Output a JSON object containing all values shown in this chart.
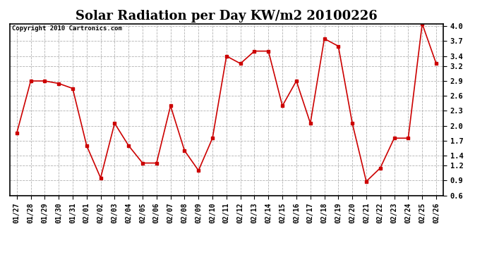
{
  "title": "Solar Radiation per Day KW/m2 20100226",
  "copyright": "Copyright 2010 Cartronics.com",
  "dates": [
    "01/27",
    "01/28",
    "01/29",
    "01/30",
    "01/31",
    "02/01",
    "02/02",
    "02/03",
    "02/04",
    "02/05",
    "02/06",
    "02/07",
    "02/08",
    "02/09",
    "02/10",
    "02/11",
    "02/12",
    "02/13",
    "02/14",
    "02/15",
    "02/16",
    "02/17",
    "02/18",
    "02/19",
    "02/20",
    "02/21",
    "02/22",
    "02/23",
    "02/24",
    "02/25",
    "02/26"
  ],
  "values": [
    1.85,
    2.9,
    2.9,
    2.85,
    2.75,
    1.6,
    0.95,
    2.05,
    1.6,
    1.25,
    1.25,
    2.4,
    1.5,
    1.1,
    1.75,
    3.4,
    3.25,
    3.5,
    3.5,
    2.4,
    2.9,
    2.05,
    3.75,
    3.6,
    2.05,
    0.88,
    1.15,
    1.75,
    1.75,
    4.05,
    3.25
  ],
  "line_color": "#cc0000",
  "marker": "s",
  "marker_size": 2.5,
  "ylim": [
    0.6,
    4.05
  ],
  "yticks": [
    0.6,
    0.9,
    1.2,
    1.4,
    1.7,
    2.0,
    2.3,
    2.6,
    2.9,
    3.2,
    3.4,
    3.7,
    4.0
  ],
  "grid_color": "#aaaaaa",
  "bg_color": "#ffffff",
  "plot_bg_color": "#ffffff",
  "title_fontsize": 13,
  "copyright_fontsize": 6.5,
  "tick_fontsize": 7,
  "ytick_fontsize": 7.5
}
